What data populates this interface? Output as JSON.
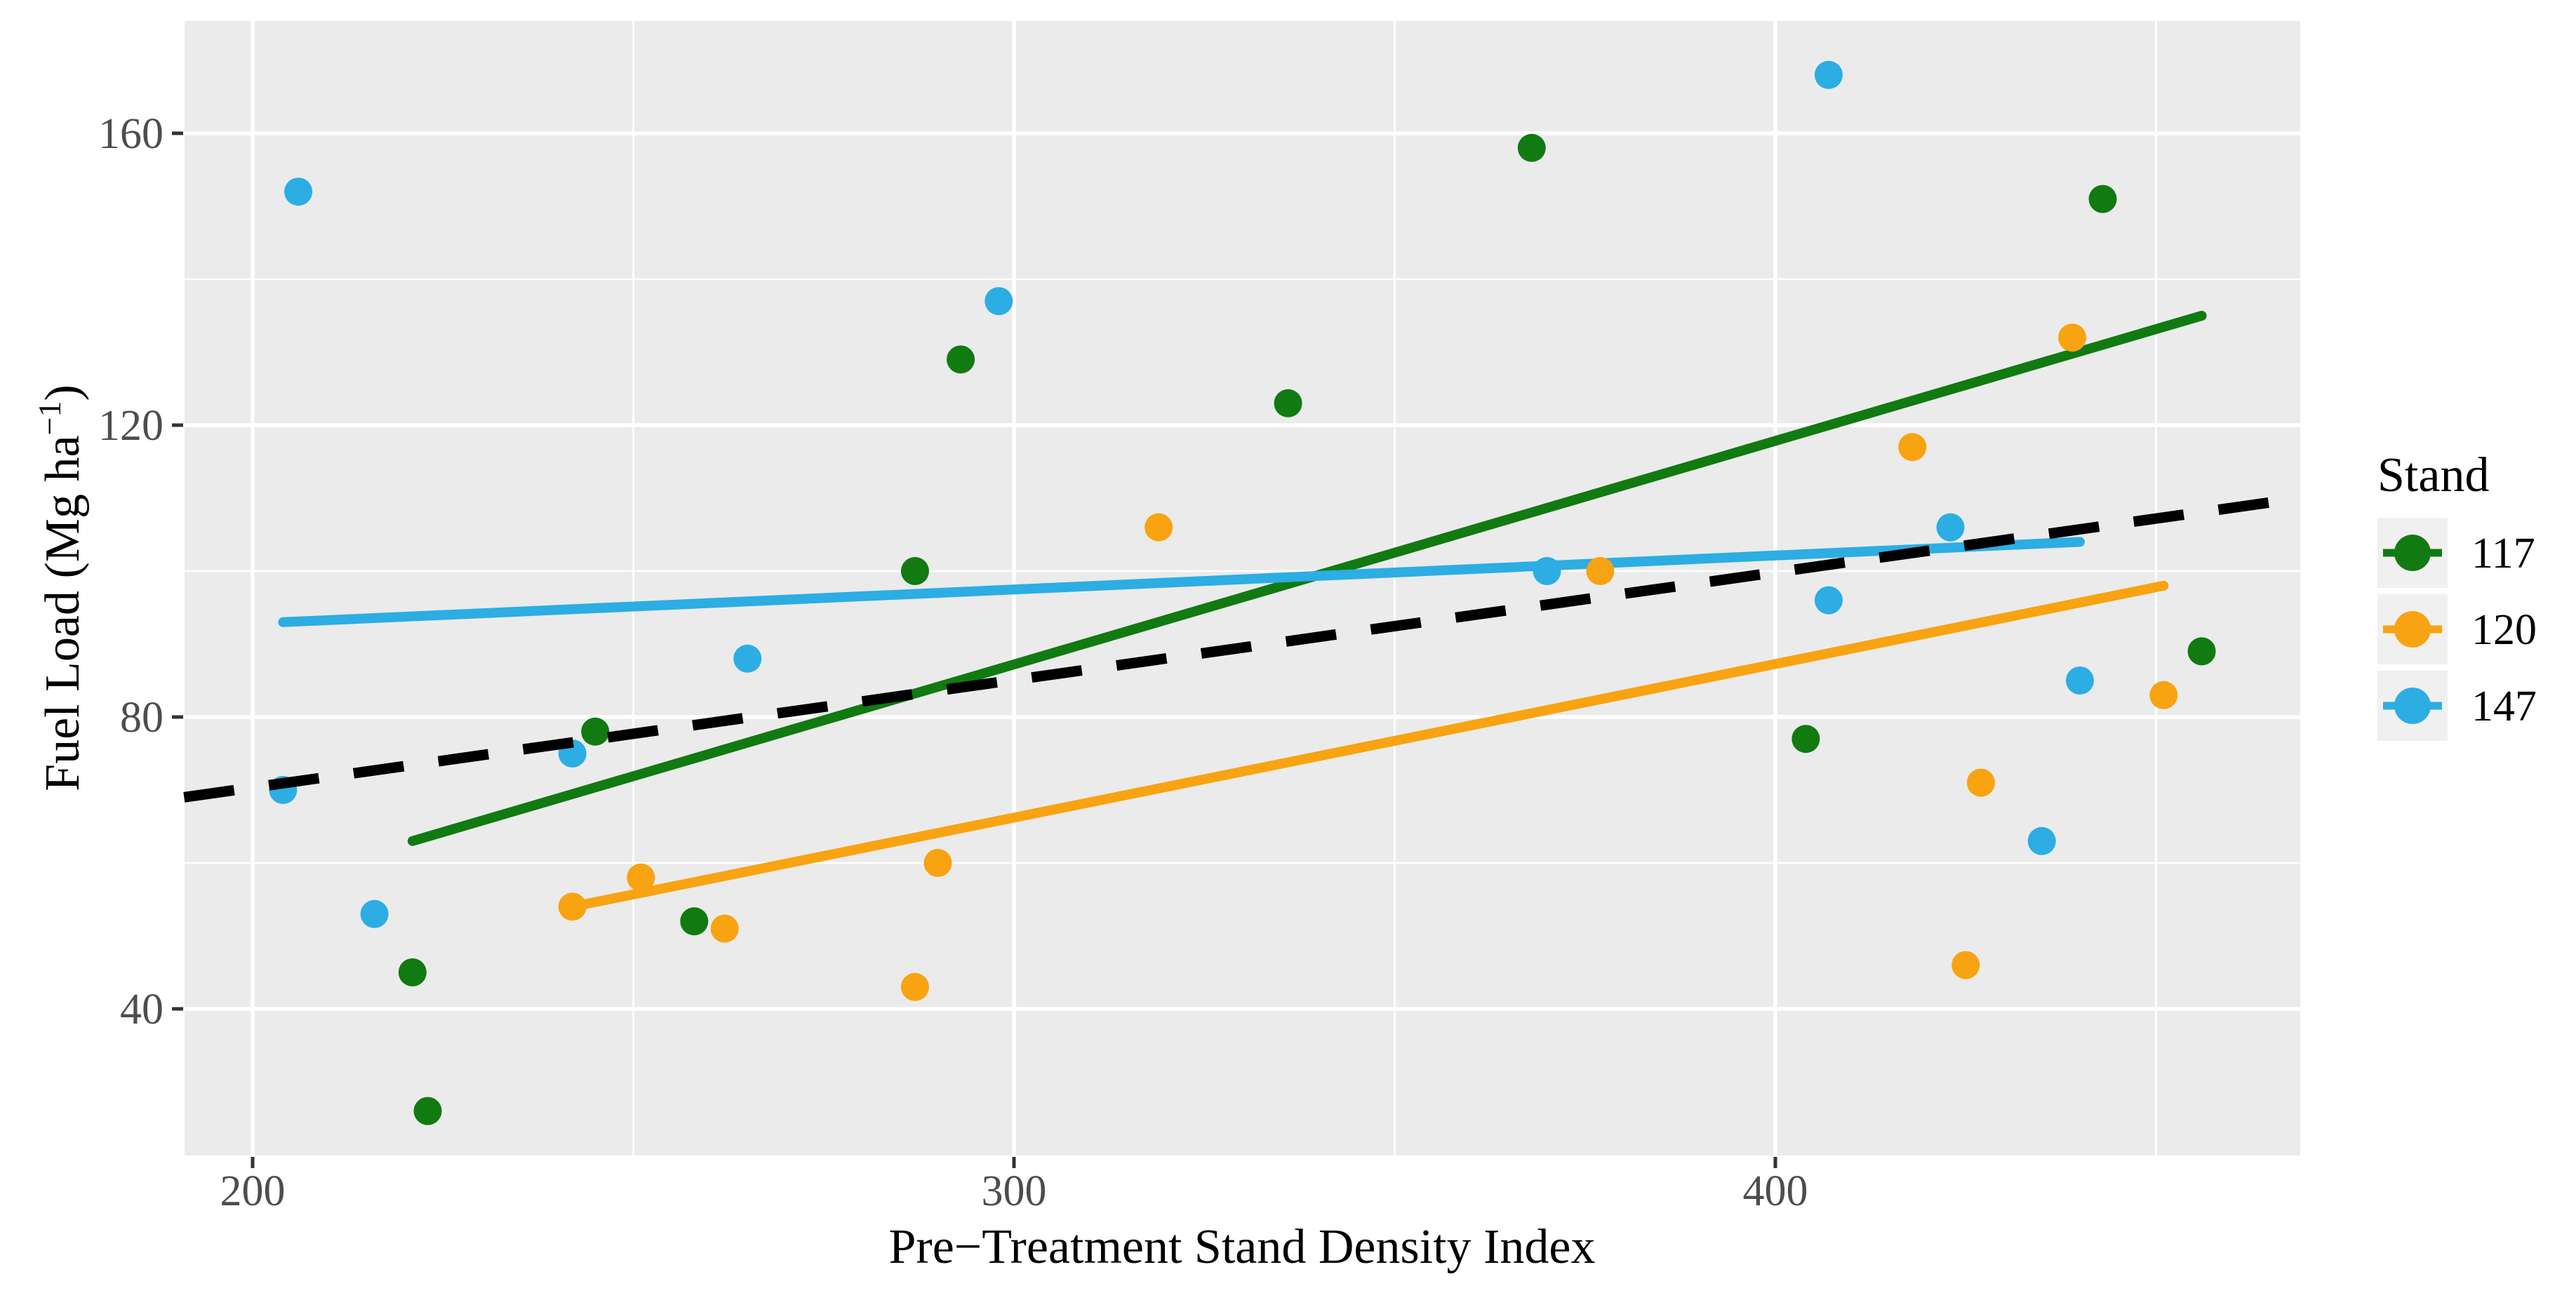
{
  "figure": {
    "background": "#ffffff",
    "panel_background": "#ebebeb",
    "gridline_color": "#ffffff",
    "tick_mark_color": "#333333",
    "tick_label_color": "#4d4d4d",
    "axis_title_color": "#000000"
  },
  "chart_data": {
    "type": "scatter",
    "title": "",
    "xlabel": "Pre−Treatment Stand Density Index",
    "ylabel_parts": [
      "Fuel Load (Mg ha",
      "−1",
      ")"
    ],
    "xlim": [
      190,
      470
    ],
    "ylim": [
      20,
      176
    ],
    "grid": "on",
    "x_ticks": [
      "200",
      "300",
      "400"
    ],
    "x_tick_values": [
      200,
      300,
      400
    ],
    "x_minor_gridlines": [
      250,
      350,
      450
    ],
    "y_ticks": [
      "40",
      "80",
      "120",
      "160"
    ],
    "y_tick_values": [
      40,
      80,
      120,
      160
    ],
    "y_minor_gridlines": [
      60,
      100,
      140
    ],
    "legend": {
      "title": "Stand",
      "position": "right",
      "key_fill": "#f0f0f0"
    },
    "series": [
      {
        "name": "117",
        "color": "#117a11",
        "points": [
          [
            221,
            45
          ],
          [
            223,
            26
          ],
          [
            245,
            78
          ],
          [
            258,
            52
          ],
          [
            287,
            100
          ],
          [
            293,
            129
          ],
          [
            336,
            123
          ],
          [
            368,
            158
          ],
          [
            404,
            77
          ],
          [
            443,
            151
          ],
          [
            456,
            89
          ]
        ],
        "trend_line": {
          "x1": 221,
          "y1": 63,
          "x2": 456,
          "y2": 135
        }
      },
      {
        "name": "120",
        "color": "#f8a311",
        "points": [
          [
            242,
            54
          ],
          [
            251,
            58
          ],
          [
            262,
            51
          ],
          [
            287,
            43
          ],
          [
            290,
            60
          ],
          [
            319,
            106
          ],
          [
            377,
            100
          ],
          [
            418,
            117
          ],
          [
            425,
            46
          ],
          [
            427,
            71
          ],
          [
            439,
            132
          ],
          [
            451,
            83
          ]
        ],
        "trend_line": {
          "x1": 242,
          "y1": 54,
          "x2": 451,
          "y2": 98
        }
      },
      {
        "name": "147",
        "color": "#2cade3",
        "points": [
          [
            204,
            70
          ],
          [
            206,
            152
          ],
          [
            216,
            53
          ],
          [
            242,
            75
          ],
          [
            265,
            88
          ],
          [
            298,
            137
          ],
          [
            370,
            100
          ],
          [
            407,
            96
          ],
          [
            407,
            168
          ],
          [
            423,
            106
          ],
          [
            435,
            63
          ],
          [
            440,
            85
          ]
        ],
        "trend_line": {
          "x1": 204,
          "y1": 93,
          "x2": 440,
          "y2": 104
        }
      }
    ],
    "overall_trend_line": {
      "style": "dashed",
      "color": "#000000",
      "x1": 191,
      "y1": 69,
      "x2": 469,
      "y2": 110
    }
  }
}
